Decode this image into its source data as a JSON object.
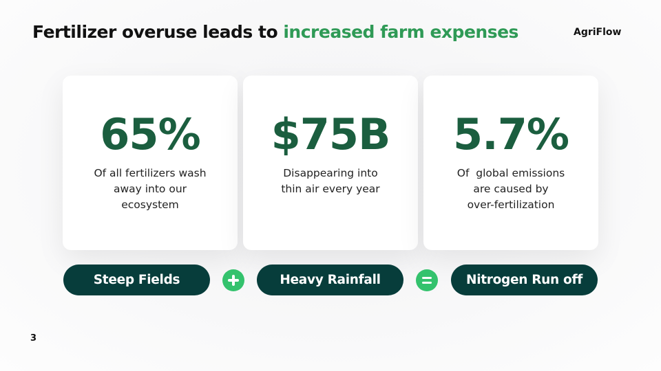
{
  "header": {
    "title_prefix": "Fertilizer overuse leads to ",
    "title_highlight": "increased farm expenses",
    "brand": "AgriFlow"
  },
  "stats": [
    {
      "value": "65%",
      "lines": [
        "Of all fertilizers wash",
        "away into our",
        "ecosystem"
      ]
    },
    {
      "value": "$75B",
      "lines": [
        "Disappearing into",
        "thin air every year"
      ]
    },
    {
      "value": "5.7%",
      "lines": [
        "Of  global emissions",
        "are caused by",
        "over-fertilization"
      ]
    }
  ],
  "equation": {
    "terms": [
      "Steep Fields",
      "Heavy Rainfall",
      "Nitrogen Run off"
    ],
    "operators": [
      "plus-icon",
      "equals-icon"
    ]
  },
  "page_number": "3",
  "colors": {
    "title_text": "#111111",
    "title_highlight": "#2f9a56",
    "stat_value": "#1b5e3f",
    "pill_background": "#073d3b",
    "operator_circle": "#34c26d",
    "card_background": "#ffffff"
  }
}
